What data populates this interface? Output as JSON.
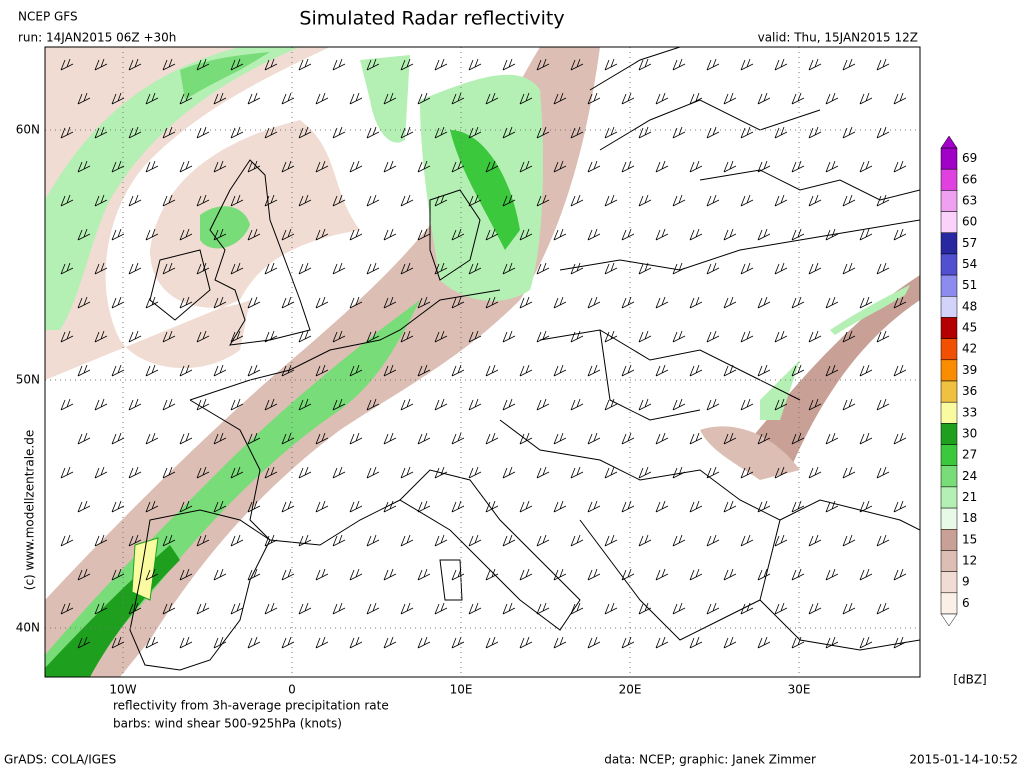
{
  "header": {
    "model": "NCEP GFS",
    "title": "Simulated Radar reflectivity",
    "run": "run: 14JAN2015 06Z +30h",
    "valid": "valid: Thu, 15JAN2015 12Z"
  },
  "axes": {
    "lat_labels": [
      "60N",
      "50N",
      "40N"
    ],
    "lon_labels": [
      "10W",
      "0",
      "10E",
      "20E",
      "30E"
    ]
  },
  "legend": {
    "unit": "[dBZ]",
    "levels": [
      {
        "value": 69,
        "color": "#a000c8"
      },
      {
        "value": 66,
        "color": "#e040e0"
      },
      {
        "value": 63,
        "color": "#f0a0f0"
      },
      {
        "value": 60,
        "color": "#fad2fa"
      },
      {
        "value": 57,
        "color": "#2828a0"
      },
      {
        "value": 54,
        "color": "#5050d0"
      },
      {
        "value": 51,
        "color": "#8c8cf0"
      },
      {
        "value": 48,
        "color": "#d2d2fa"
      },
      {
        "value": 45,
        "color": "#b40000"
      },
      {
        "value": 42,
        "color": "#f05000"
      },
      {
        "value": 39,
        "color": "#fa8c00"
      },
      {
        "value": 36,
        "color": "#f0c040"
      },
      {
        "value": 33,
        "color": "#fafaa0"
      },
      {
        "value": 30,
        "color": "#1ea01e"
      },
      {
        "value": 27,
        "color": "#3cc83c"
      },
      {
        "value": 24,
        "color": "#78dc78"
      },
      {
        "value": 21,
        "color": "#b4f0b4"
      },
      {
        "value": 18,
        "color": "#e6fae6"
      },
      {
        "value": 15,
        "color": "#c8a096"
      },
      {
        "value": 12,
        "color": "#dcbeb4"
      },
      {
        "value": 9,
        "color": "#f0dcd2"
      },
      {
        "value": 6,
        "color": "#faf0e6"
      }
    ]
  },
  "notes": [
    "reflectivity from 3h-average precipitation rate",
    "barbs: wind shear 500-925hPa (knots)"
  ],
  "credit": "(c) www.modellzentrale.de",
  "footer": {
    "left": "GrADS: COLA/IGES",
    "center": "data: NCEP; graphic: Janek Zimmer",
    "right": "2015-01-14-10:52"
  }
}
